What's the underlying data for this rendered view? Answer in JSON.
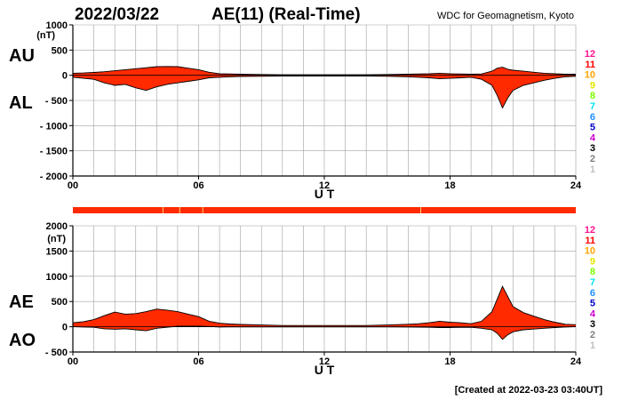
{
  "header": {
    "date": "2022/03/22",
    "title": "AE(11) (Real-Time)",
    "source": "WDC for Geomagnetism, Kyoto"
  },
  "footer": {
    "created": "[Created at 2022-03-23 03:40UT]"
  },
  "colors": {
    "fill": "#ff2a00",
    "grid": "#a0a0a0",
    "axis": "#000000",
    "tick_marks": "#ffd27a"
  },
  "station_legend": [
    {
      "label": "12",
      "color": "#ff1493"
    },
    {
      "label": "11",
      "color": "#ff0000"
    },
    {
      "label": "10",
      "color": "#ffa500"
    },
    {
      "label": "9",
      "color": "#e6e600"
    },
    {
      "label": "8",
      "color": "#7cfc00"
    },
    {
      "label": "7",
      "color": "#00e5ee"
    },
    {
      "label": "6",
      "color": "#1e90ff"
    },
    {
      "label": "5",
      "color": "#0000cd"
    },
    {
      "label": "4",
      "color": "#cc00cc"
    },
    {
      "label": "3",
      "color": "#000000"
    },
    {
      "label": "2",
      "color": "#808080"
    },
    {
      "label": "1",
      "color": "#c0c0c0"
    }
  ],
  "station_bar": {
    "marks_ut": [
      4.3,
      5.1,
      6.2,
      16.6
    ]
  },
  "chart_data": [
    {
      "type": "area",
      "name": "AU/AL",
      "upper_label": "AU",
      "lower_label": "AL",
      "unit": "(nT)",
      "xlabel": "U T",
      "xlim": [
        0,
        24
      ],
      "ylim": [
        -2000,
        1000
      ],
      "xticks": [
        0,
        6,
        12,
        18,
        24
      ],
      "xtick_labels": [
        "00",
        "06",
        "12",
        "18",
        "24"
      ],
      "yticks": [
        1000,
        500,
        0,
        -500,
        -1000,
        -1500,
        -2000
      ],
      "ytick_labels": [
        "1000",
        "500",
        "0",
        "- 500",
        "- 1000",
        "- 1500",
        "- 2000"
      ],
      "grid": true,
      "x": [
        0,
        0.5,
        1,
        1.5,
        2,
        2.5,
        3,
        3.5,
        4,
        4.5,
        5,
        5.5,
        6,
        6.5,
        7,
        7.5,
        8,
        9,
        10,
        11,
        12,
        13,
        14,
        15,
        16,
        16.5,
        17,
        17.5,
        18,
        18.5,
        19,
        19.5,
        20,
        20.25,
        20.5,
        20.75,
        21,
        21.5,
        22,
        22.5,
        23,
        23.5,
        24
      ],
      "series": [
        {
          "name": "AU",
          "values": [
            40,
            45,
            55,
            70,
            90,
            110,
            130,
            150,
            170,
            175,
            170,
            140,
            110,
            60,
            30,
            25,
            20,
            15,
            10,
            10,
            10,
            10,
            10,
            15,
            20,
            25,
            30,
            40,
            30,
            25,
            20,
            25,
            80,
            140,
            160,
            120,
            100,
            80,
            60,
            40,
            30,
            20,
            20
          ]
        },
        {
          "name": "AL",
          "values": [
            -40,
            -60,
            -80,
            -150,
            -200,
            -180,
            -250,
            -300,
            -230,
            -180,
            -150,
            -120,
            -90,
            -50,
            -40,
            -30,
            -25,
            -20,
            -15,
            -15,
            -15,
            -15,
            -15,
            -20,
            -30,
            -40,
            -50,
            -70,
            -60,
            -50,
            -40,
            -80,
            -200,
            -400,
            -650,
            -450,
            -300,
            -200,
            -150,
            -100,
            -60,
            -30,
            -20
          ]
        }
      ]
    },
    {
      "type": "area",
      "name": "AE/AO",
      "upper_label": "AE",
      "lower_label": "AO",
      "unit": "(nT)",
      "xlabel": "U T",
      "xlim": [
        0,
        24
      ],
      "ylim": [
        -500,
        2000
      ],
      "xticks": [
        0,
        6,
        12,
        18,
        24
      ],
      "xtick_labels": [
        "00",
        "06",
        "12",
        "18",
        "24"
      ],
      "yticks": [
        2000,
        1500,
        1000,
        500,
        0,
        -500
      ],
      "ytick_labels": [
        "2000",
        "1500",
        "1000",
        "500",
        "0",
        "- 500"
      ],
      "grid": true,
      "x": [
        0,
        0.5,
        1,
        1.5,
        2,
        2.5,
        3,
        3.5,
        4,
        4.5,
        5,
        5.5,
        6,
        6.5,
        7,
        7.5,
        8,
        9,
        10,
        11,
        12,
        13,
        14,
        15,
        16,
        16.5,
        17,
        17.5,
        18,
        18.5,
        19,
        19.5,
        20,
        20.25,
        20.5,
        20.75,
        21,
        21.5,
        22,
        22.5,
        23,
        23.5,
        24
      ],
      "series": [
        {
          "name": "AE",
          "values": [
            80,
            100,
            140,
            220,
            290,
            250,
            260,
            300,
            350,
            330,
            300,
            250,
            200,
            110,
            70,
            55,
            45,
            35,
            25,
            25,
            25,
            25,
            25,
            35,
            50,
            60,
            80,
            110,
            90,
            80,
            60,
            110,
            300,
            550,
            800,
            600,
            400,
            280,
            210,
            140,
            90,
            50,
            40
          ]
        },
        {
          "name": "AO",
          "values": [
            0,
            -5,
            -10,
            -40,
            -50,
            -40,
            -60,
            -80,
            -30,
            -10,
            10,
            10,
            10,
            5,
            -5,
            -3,
            -3,
            -3,
            -3,
            -3,
            -3,
            -3,
            -3,
            -3,
            -5,
            -8,
            -10,
            -15,
            -15,
            -12,
            -10,
            -30,
            -60,
            -130,
            -250,
            -160,
            -100,
            -60,
            -45,
            -30,
            -15,
            -5,
            0
          ]
        }
      ]
    }
  ]
}
